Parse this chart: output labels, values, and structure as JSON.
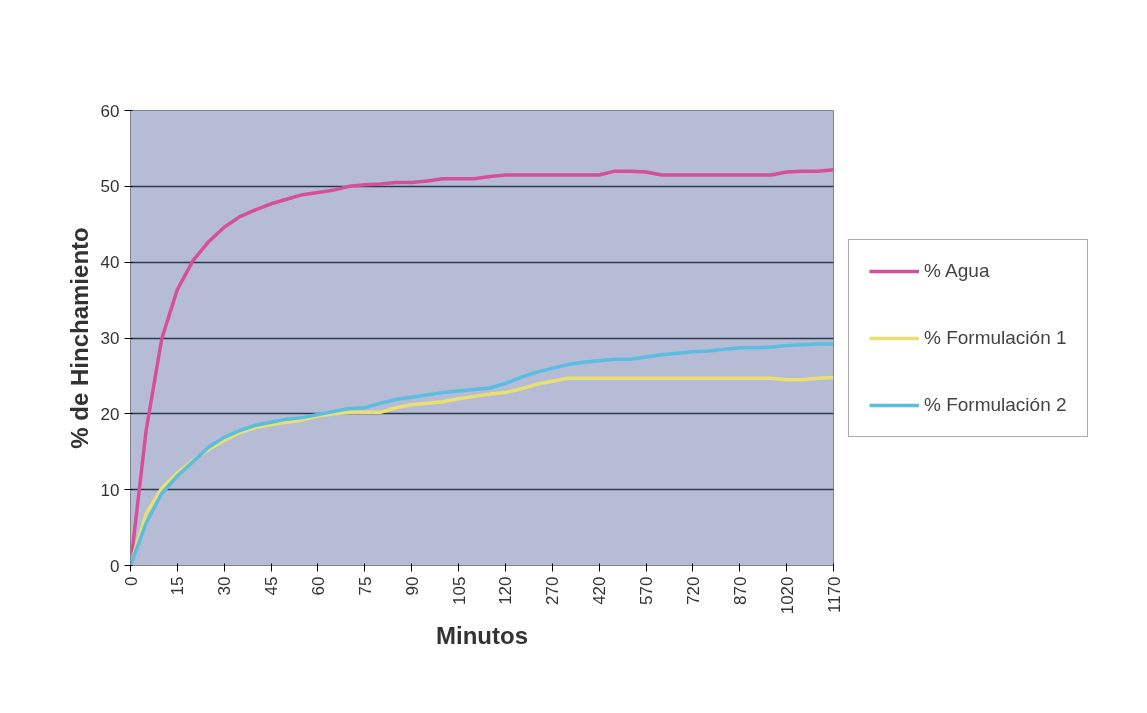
{
  "chart_data": {
    "type": "line",
    "xlabel": "Minutos",
    "ylabel": "% de Hinchamiento",
    "categories": [
      "0",
      null,
      null,
      "15",
      null,
      null,
      "30",
      null,
      null,
      "45",
      null,
      null,
      "60",
      null,
      null,
      "75",
      null,
      null,
      "90",
      null,
      null,
      "105",
      null,
      null,
      "120",
      null,
      null,
      "270",
      null,
      null,
      "420",
      null,
      null,
      "570",
      null,
      null,
      "720",
      null,
      null,
      "870",
      null,
      null,
      "1020",
      null,
      null,
      "1170"
    ],
    "ylim": [
      0,
      60
    ],
    "yticks": [
      0,
      10,
      20,
      30,
      40,
      50,
      60
    ],
    "grid": "y",
    "legend": "right",
    "marker": "none",
    "line_style": "solid",
    "series": [
      {
        "name": "% Agua",
        "color": "#d64f9b",
        "values": [
          0,
          17.8,
          29.9,
          36.4,
          40.2,
          42.7,
          44.6,
          46,
          46.9,
          47.7,
          48.3,
          48.9,
          49.2,
          49.5,
          50,
          50.2,
          50.3,
          50.5,
          50.5,
          50.7,
          51,
          51,
          51,
          51.3,
          51.5,
          51.5,
          51.5,
          51.5,
          51.5,
          51.5,
          51.5,
          52,
          52,
          51.9,
          51.5,
          51.5,
          51.5,
          51.5,
          51.5,
          51.5,
          51.5,
          51.5,
          51.9,
          52,
          52,
          52.2
        ]
      },
      {
        "name": "% Formulación 1",
        "color": "#e8e070",
        "values": [
          0,
          6.8,
          10.2,
          12.2,
          13.9,
          15.3,
          16.5,
          17.5,
          18.2,
          18.6,
          18.9,
          19.2,
          19.7,
          20,
          20.2,
          20.2,
          20.2,
          20.8,
          21.2,
          21.4,
          21.6,
          22,
          22.3,
          22.6,
          22.8,
          23.3,
          23.9,
          24.3,
          24.7,
          24.7,
          24.7,
          24.7,
          24.7,
          24.7,
          24.7,
          24.7,
          24.7,
          24.7,
          24.7,
          24.7,
          24.7,
          24.7,
          24.5,
          24.5,
          24.7,
          24.8
        ]
      },
      {
        "name": "% Formulación 2",
        "color": "#5bbde0",
        "values": [
          0,
          5.6,
          9.5,
          11.8,
          13.7,
          15.6,
          16.9,
          17.8,
          18.5,
          18.9,
          19.3,
          19.5,
          19.9,
          20.3,
          20.7,
          20.8,
          21.4,
          21.9,
          22.2,
          22.5,
          22.8,
          23,
          23.2,
          23.4,
          24,
          24.8,
          25.5,
          26,
          26.5,
          26.8,
          27,
          27.2,
          27.2,
          27.5,
          27.8,
          28,
          28.2,
          28.3,
          28.5,
          28.7,
          28.7,
          28.8,
          29,
          29.1,
          29.2,
          29.2
        ]
      }
    ]
  }
}
